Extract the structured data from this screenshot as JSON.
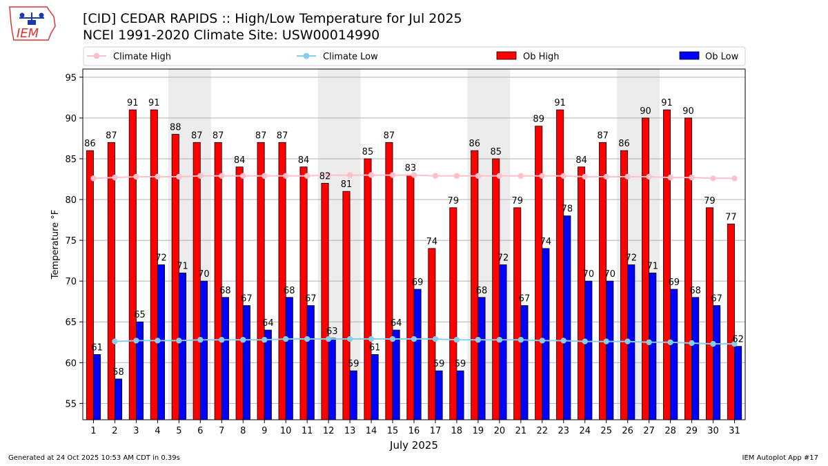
{
  "header": {
    "logo_text": "IEM",
    "title_line1": "[CID] CEDAR RAPIDS :: High/Low Temperature for Jul 2025",
    "title_line2": "NCEI 1991-2020 Climate Site: USW00014990"
  },
  "footer": {
    "generated": "Generated at 24 Oct 2025 10:53 AM CDT in 0.39s",
    "app": "IEM Autoplot App #17"
  },
  "chart_data": {
    "type": "bar",
    "title": "[CID] CEDAR RAPIDS :: High/Low Temperature for Jul 2025",
    "subtitle": "NCEI 1991-2020 Climate Site: USW00014990",
    "xlabel": "July 2025",
    "ylabel": "Temperature °F",
    "ylim": [
      53,
      96
    ],
    "yticks": [
      55,
      60,
      65,
      70,
      75,
      80,
      85,
      90,
      95
    ],
    "grid": true,
    "legend_position": "top",
    "categories": [
      "1",
      "2",
      "3",
      "4",
      "5",
      "6",
      "7",
      "8",
      "9",
      "10",
      "11",
      "12",
      "13",
      "14",
      "15",
      "16",
      "17",
      "18",
      "19",
      "20",
      "21",
      "22",
      "23",
      "24",
      "25",
      "26",
      "27",
      "28",
      "29",
      "30",
      "31"
    ],
    "weekend_shaded_days": [
      [
        5,
        6
      ],
      [
        12,
        13
      ],
      [
        19,
        20
      ],
      [
        26,
        27
      ]
    ],
    "colors": {
      "ob_high": "#ff0000",
      "ob_low": "#0000ff",
      "climate_high": "#ffc0cb",
      "climate_low": "#87ceeb",
      "shade": "#ececec"
    },
    "series": [
      {
        "name": "Climate High",
        "kind": "line",
        "values": [
          82.6,
          82.7,
          82.8,
          82.8,
          82.8,
          82.9,
          82.9,
          82.9,
          82.9,
          82.9,
          82.9,
          83.0,
          83.0,
          83.0,
          83.0,
          83.0,
          82.9,
          82.9,
          82.9,
          82.9,
          82.9,
          82.9,
          82.9,
          82.8,
          82.8,
          82.8,
          82.8,
          82.7,
          82.7,
          82.6,
          82.6
        ]
      },
      {
        "name": "Climate Low",
        "kind": "line",
        "values": [
          null,
          62.6,
          62.7,
          62.7,
          62.7,
          62.8,
          62.8,
          62.8,
          62.8,
          62.9,
          62.9,
          62.9,
          62.9,
          62.9,
          62.9,
          62.9,
          62.9,
          62.8,
          62.8,
          62.8,
          62.8,
          62.7,
          62.7,
          62.6,
          62.6,
          62.6,
          62.5,
          62.5,
          62.4,
          62.3,
          62.3
        ]
      },
      {
        "name": "Ob High",
        "kind": "bar",
        "values": [
          86,
          87,
          91,
          91,
          88,
          87,
          87,
          84,
          87,
          87,
          84,
          82,
          81,
          85,
          87,
          83,
          74,
          79,
          86,
          85,
          79,
          89,
          91,
          84,
          87,
          86,
          90,
          91,
          90,
          79,
          77
        ]
      },
      {
        "name": "Ob Low",
        "kind": "bar",
        "values": [
          61,
          58,
          65,
          72,
          71,
          70,
          68,
          67,
          64,
          68,
          67,
          63,
          59,
          61,
          64,
          69,
          59,
          59,
          68,
          72,
          67,
          74,
          78,
          70,
          70,
          72,
          71,
          69,
          68,
          67,
          62
        ]
      }
    ]
  }
}
